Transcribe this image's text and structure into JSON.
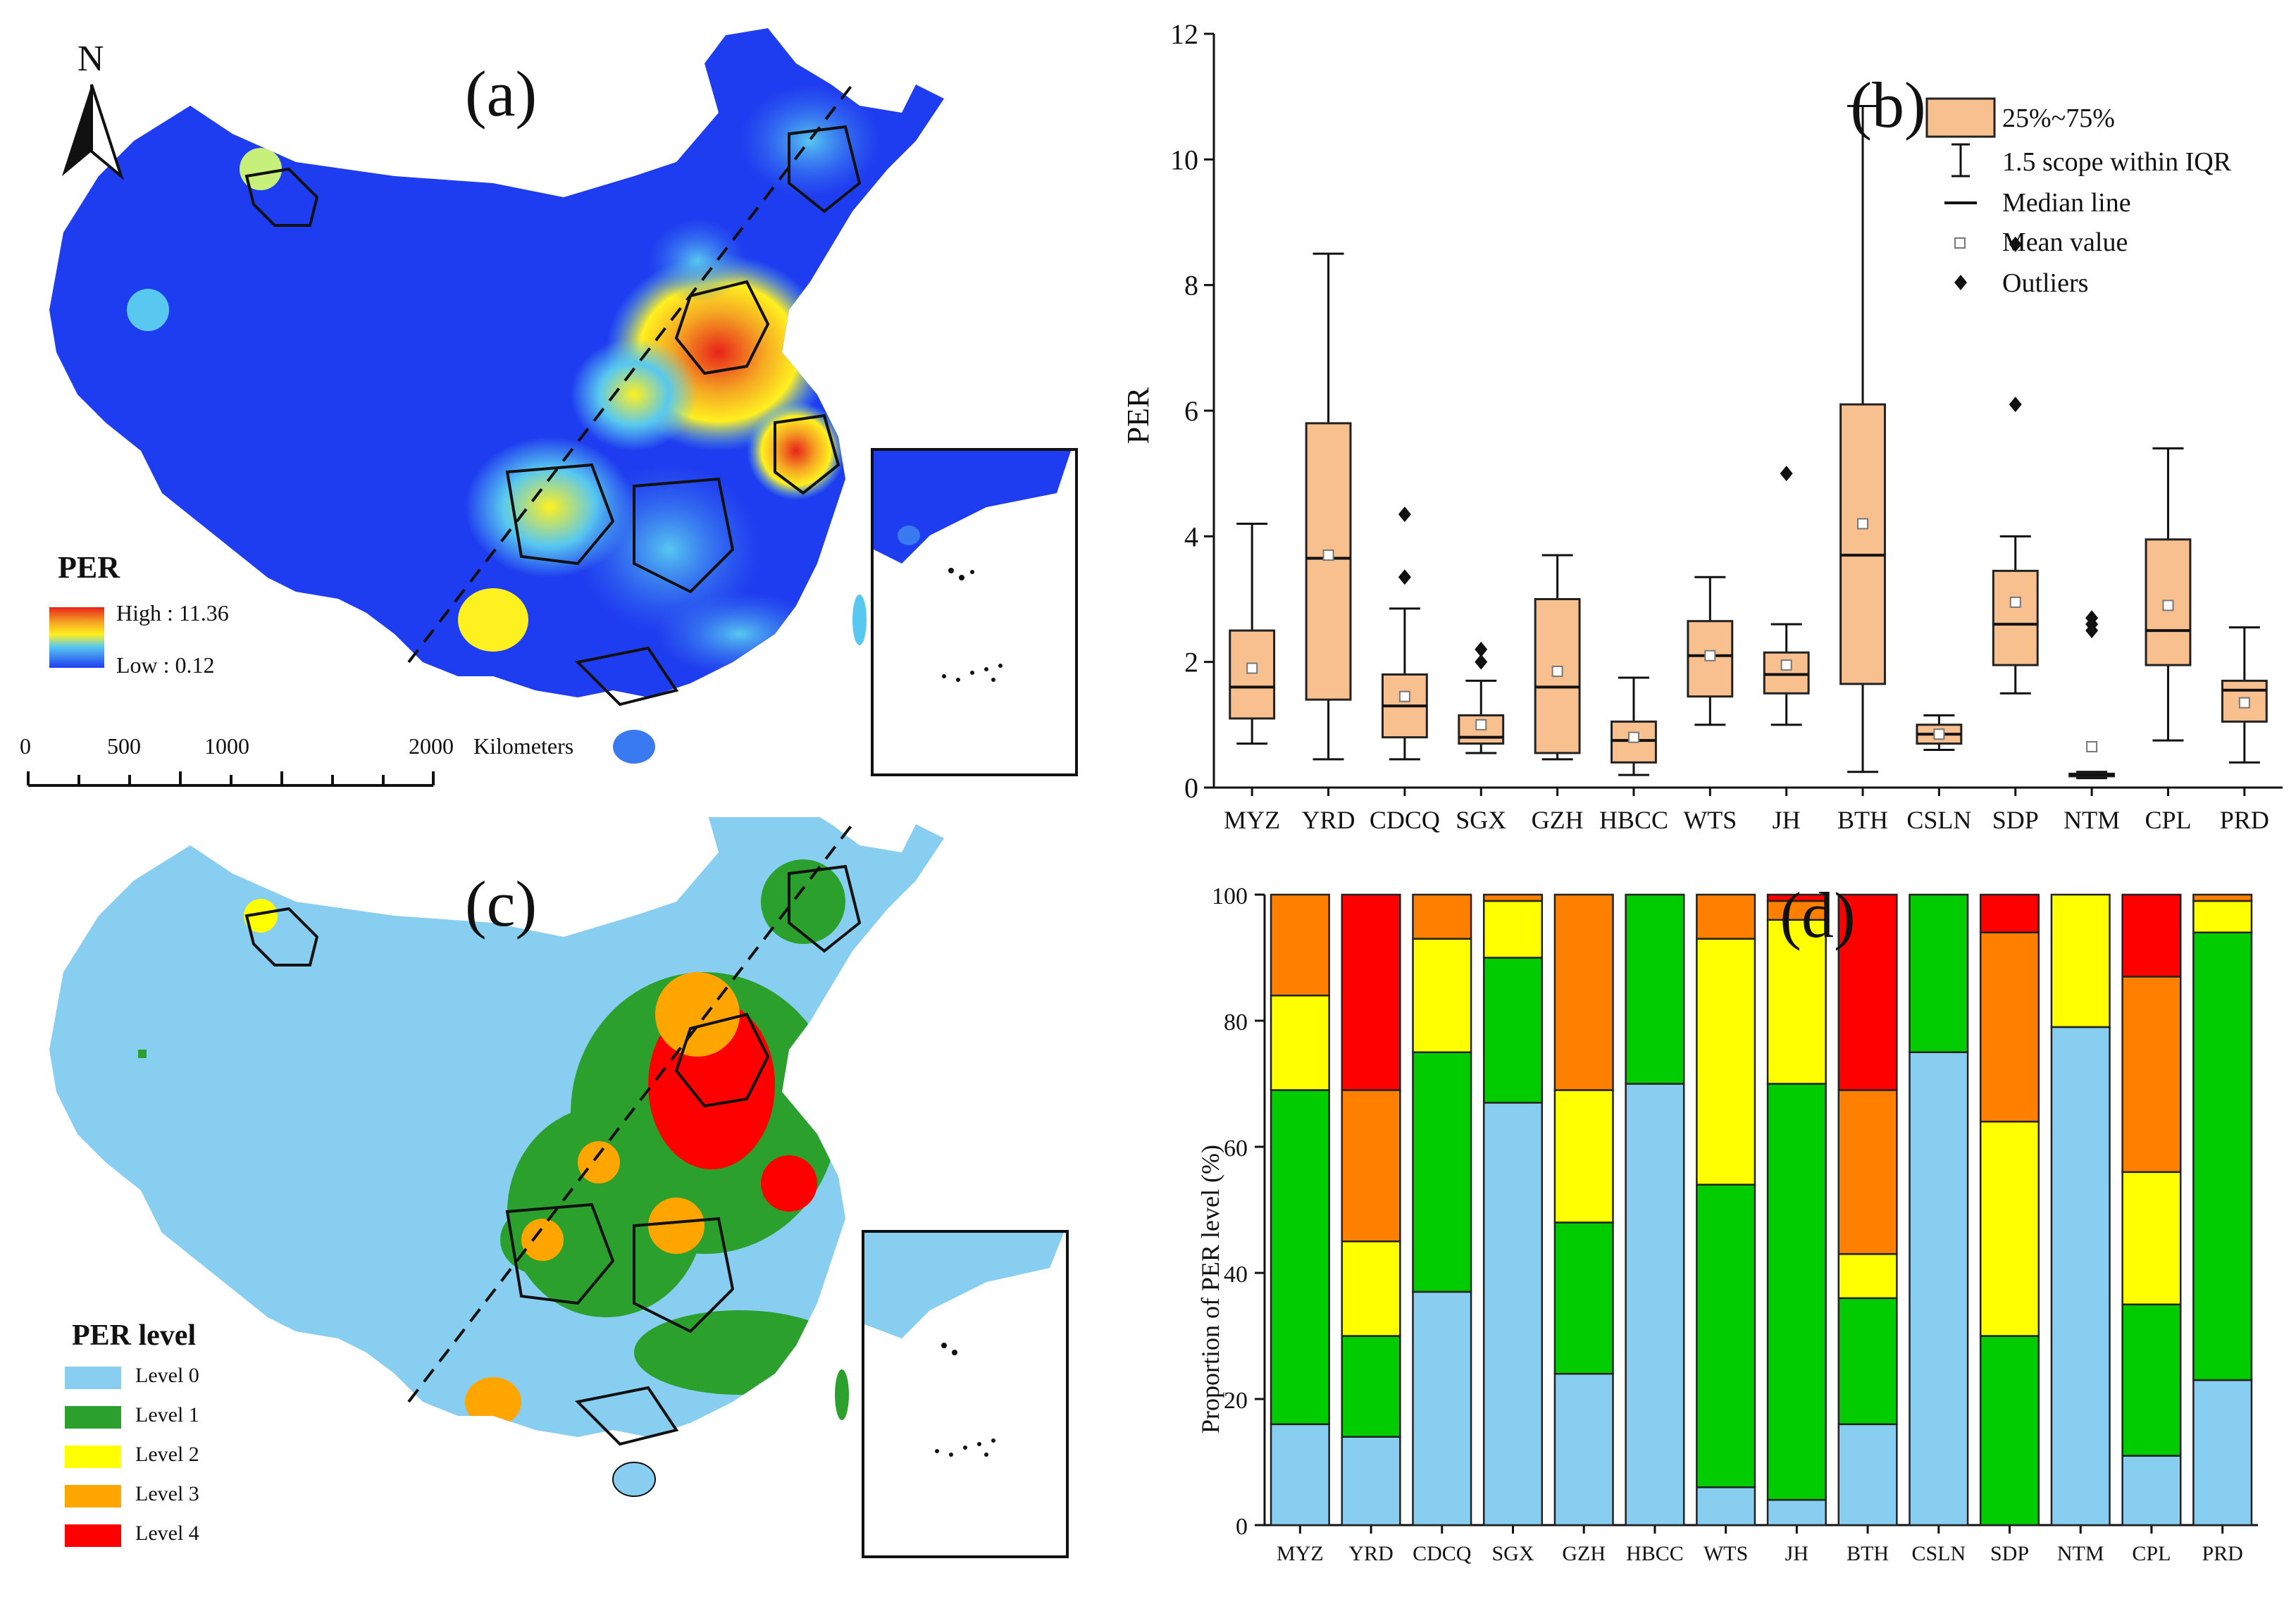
{
  "panel_labels": {
    "a": "(a)",
    "b": "(b)",
    "c": "(c)",
    "d": "(d)"
  },
  "map_a": {
    "north": "N",
    "legend_title": "PER",
    "legend_high": "High : 11.36",
    "legend_low": "Low : 0.12",
    "scale_ticks": [
      "0",
      "500",
      "1000",
      "2000"
    ],
    "scale_unit": "Kilometers",
    "colors": {
      "base": "#1f3df0",
      "hot": "#e8231a",
      "warm": "#f5a623",
      "mid": "#fff01f",
      "cool": "#58c8f0"
    }
  },
  "map_c": {
    "legend_title": "PER level",
    "levels": [
      {
        "label": "Level 0",
        "color": "#87cef0"
      },
      {
        "label": "Level 1",
        "color": "#2ca02c"
      },
      {
        "label": "Level 2",
        "color": "#ffff00"
      },
      {
        "label": "Level 3",
        "color": "#ffa500"
      },
      {
        "label": "Level 4",
        "color": "#ff0000"
      }
    ]
  },
  "chart_data": [
    {
      "type": "box",
      "panel": "(b)",
      "ylabel": "PER",
      "ylim": [
        0,
        12
      ],
      "yticks": [
        0,
        2,
        4,
        6,
        8,
        10,
        12
      ],
      "categories": [
        "MYZ",
        "YRD",
        "CDCQ",
        "SGX",
        "GZH",
        "HBCC",
        "WTS",
        "JH",
        "BTH",
        "CSLN",
        "SDP",
        "NTM",
        "CPL",
        "PRD"
      ],
      "boxes": [
        {
          "min": 0.7,
          "q1": 1.1,
          "median": 1.6,
          "q3": 2.5,
          "max": 4.2,
          "mean": 1.9,
          "outliers": []
        },
        {
          "min": 0.45,
          "q1": 1.4,
          "median": 3.65,
          "q3": 5.8,
          "max": 8.5,
          "mean": 3.7,
          "outliers": []
        },
        {
          "min": 0.45,
          "q1": 0.8,
          "median": 1.3,
          "q3": 1.8,
          "max": 2.85,
          "mean": 1.45,
          "outliers": [
            3.35,
            4.35
          ]
        },
        {
          "min": 0.55,
          "q1": 0.7,
          "median": 0.8,
          "q3": 1.15,
          "max": 1.7,
          "mean": 1.0,
          "outliers": [
            2.0,
            2.2
          ]
        },
        {
          "min": 0.45,
          "q1": 0.55,
          "median": 1.6,
          "q3": 3.0,
          "max": 3.7,
          "mean": 1.85,
          "outliers": []
        },
        {
          "min": 0.2,
          "q1": 0.4,
          "median": 0.75,
          "q3": 1.05,
          "max": 1.75,
          "mean": 0.8,
          "outliers": []
        },
        {
          "min": 1.0,
          "q1": 1.45,
          "median": 2.1,
          "q3": 2.65,
          "max": 3.35,
          "mean": 2.1,
          "outliers": []
        },
        {
          "min": 1.0,
          "q1": 1.5,
          "median": 1.8,
          "q3": 2.15,
          "max": 2.6,
          "mean": 1.95,
          "outliers": [
            5.0
          ]
        },
        {
          "min": 0.25,
          "q1": 1.65,
          "median": 3.7,
          "q3": 6.1,
          "max": 10.85,
          "mean": 4.2,
          "outliers": []
        },
        {
          "min": 0.6,
          "q1": 0.7,
          "median": 0.85,
          "q3": 1.0,
          "max": 1.15,
          "mean": 0.85,
          "outliers": []
        },
        {
          "min": 1.5,
          "q1": 1.95,
          "median": 2.6,
          "q3": 3.45,
          "max": 4.0,
          "mean": 2.95,
          "outliers": [
            6.1,
            8.65
          ]
        },
        {
          "min": 0.15,
          "q1": 0.18,
          "median": 0.2,
          "q3": 0.22,
          "max": 0.25,
          "mean": 0.65,
          "outliers": [
            2.5,
            2.6,
            2.7
          ]
        },
        {
          "min": 0.75,
          "q1": 1.95,
          "median": 2.5,
          "q3": 3.95,
          "max": 5.4,
          "mean": 2.9,
          "outliers": []
        },
        {
          "min": 0.4,
          "q1": 1.05,
          "median": 1.55,
          "q3": 1.7,
          "max": 2.55,
          "mean": 1.35,
          "outliers": []
        }
      ],
      "legend": [
        "25%~75%",
        "1.5 scope within IQR",
        "Median line",
        "Mean value",
        "Outliers"
      ],
      "box_color": "#f9c08f"
    },
    {
      "type": "stacked_bar",
      "panel": "(d)",
      "ylabel": "Proportion of PER level (%)",
      "ylim": [
        0,
        100
      ],
      "yticks": [
        0,
        20,
        40,
        60,
        80,
        100
      ],
      "categories": [
        "MYZ",
        "YRD",
        "CDCQ",
        "SGX",
        "GZH",
        "HBCC",
        "WTS",
        "JH",
        "BTH",
        "CSLN",
        "SDP",
        "NTM",
        "CPL",
        "PRD"
      ],
      "series": [
        {
          "name": "Level 0",
          "color": "#87cef0",
          "values": [
            16,
            14,
            37,
            67,
            24,
            70,
            6,
            4,
            16,
            75,
            0,
            79,
            11,
            23
          ]
        },
        {
          "name": "Level 1",
          "color": "#00cc00",
          "values": [
            53,
            16,
            38,
            23,
            24,
            30,
            48,
            66,
            20,
            25,
            30,
            0,
            24,
            71
          ]
        },
        {
          "name": "Level 2",
          "color": "#ffff00",
          "values": [
            15,
            15,
            18,
            9,
            21,
            0,
            39,
            26,
            7,
            0,
            34,
            21,
            21,
            5
          ]
        },
        {
          "name": "Level 3",
          "color": "#ff8000",
          "values": [
            16,
            24,
            7,
            1,
            31,
            0,
            7,
            3,
            26,
            0,
            30,
            0,
            31,
            1
          ]
        },
        {
          "name": "Level 4",
          "color": "#ff0000",
          "values": [
            0,
            31,
            0,
            0,
            0,
            0,
            0,
            1,
            31,
            0,
            6,
            0,
            13,
            0
          ]
        }
      ]
    }
  ]
}
